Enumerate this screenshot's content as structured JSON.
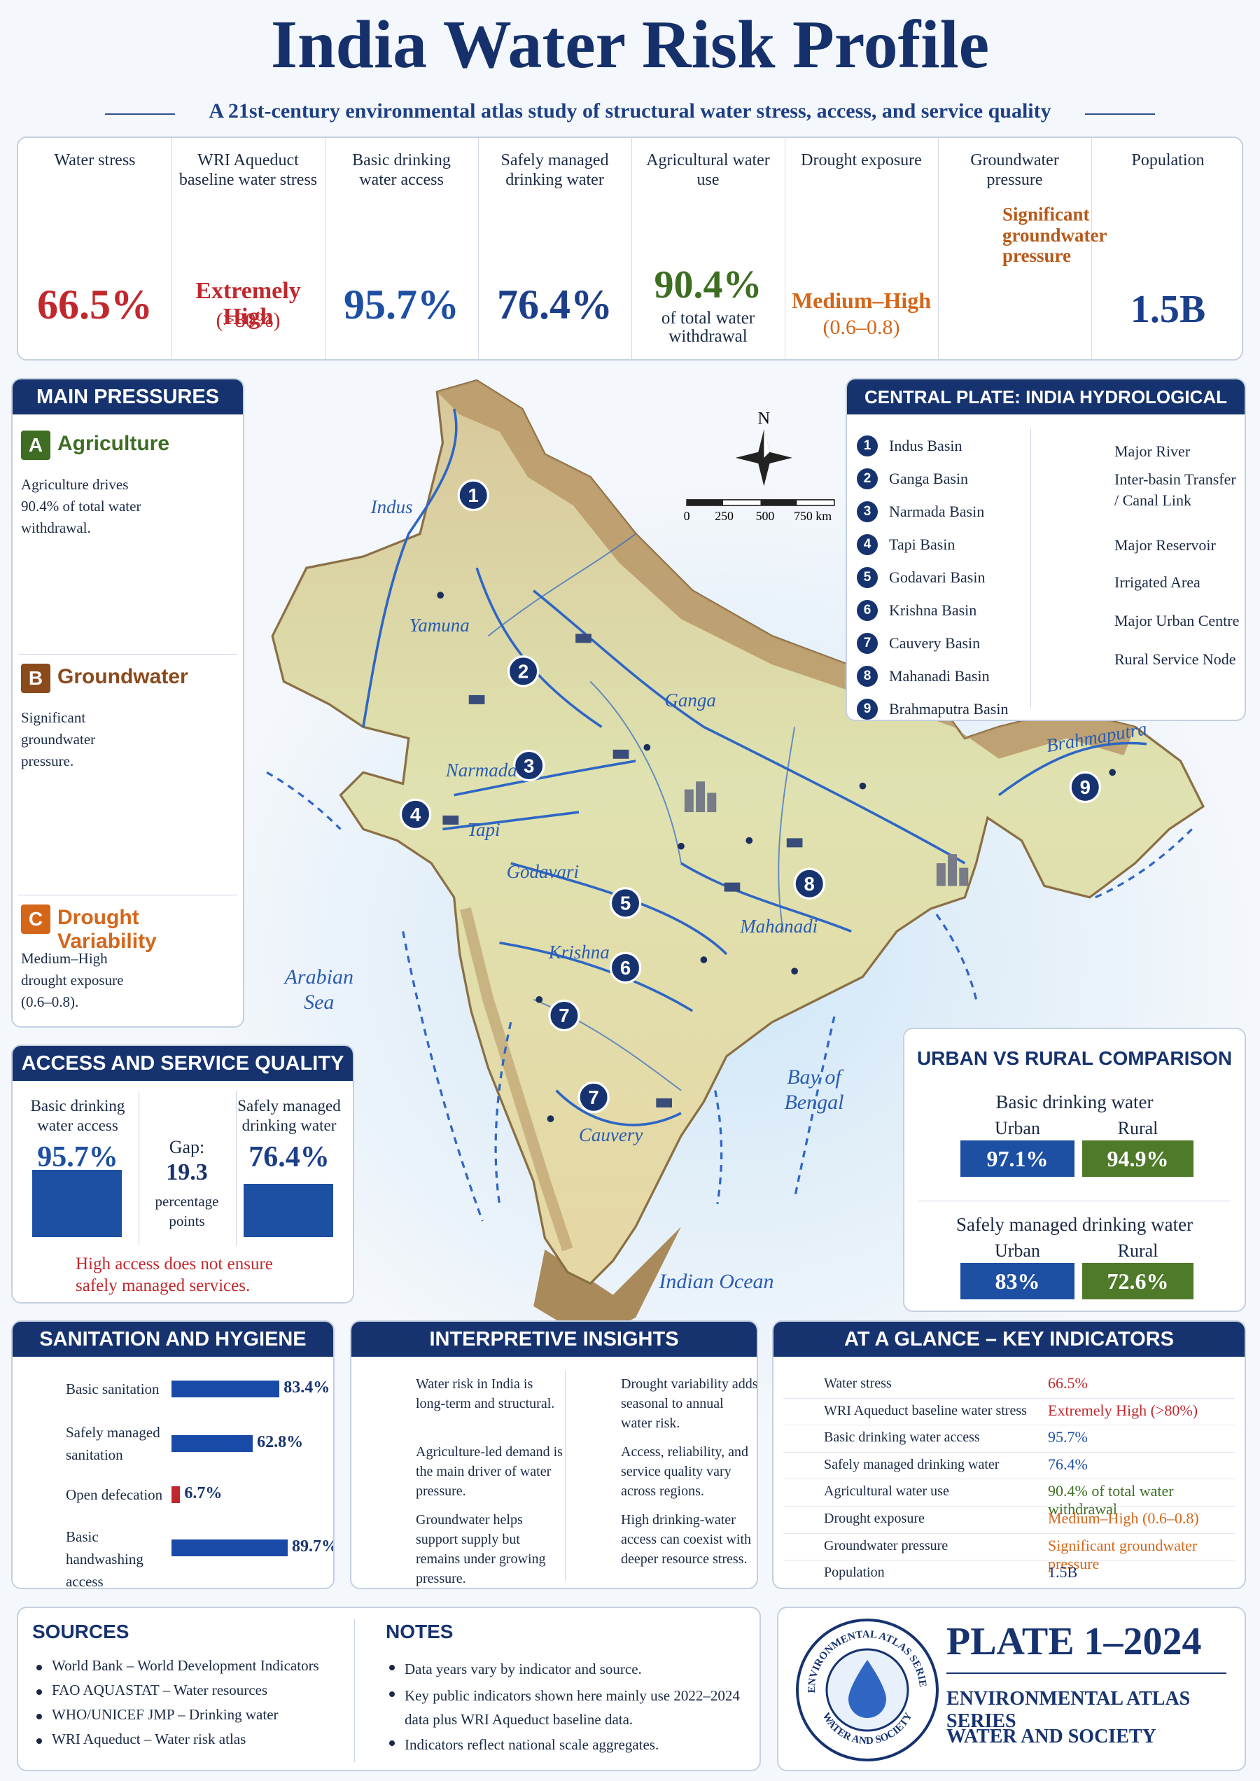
{
  "header": {
    "title": "India Water Risk Profile",
    "subtitle": "A 21st-century environmental atlas study of structural water stress, access, and service quality"
  },
  "indicators": [
    {
      "label": "Water stress",
      "value": "66.5%"
    },
    {
      "label": "WRI Aqueduct baseline water stress",
      "value": "Extremely High",
      "note": "(>80%)"
    },
    {
      "label": "Basic drinking water access",
      "value": "95.7%"
    },
    {
      "label": "Safely managed drinking water",
      "value": "76.4%"
    },
    {
      "label": "Agricultural water use",
      "value": "90.4%",
      "note": "of total water withdrawal"
    },
    {
      "label": "Drought exposure",
      "value": "Medium–High",
      "note": "(0.6–0.8)"
    },
    {
      "label": "Groundwater pressure",
      "value": "Significant groundwater pressure"
    },
    {
      "label": "Population",
      "value": "1.5B"
    }
  ],
  "main_pressures": {
    "title": "MAIN PRESSURES",
    "items": [
      {
        "letter": "A",
        "title": "Agriculture",
        "text": "Agriculture drives 90.4% of total water withdrawal."
      },
      {
        "letter": "B",
        "title": "Groundwater",
        "text": "Significant groundwater pressure."
      },
      {
        "letter": "C",
        "title": "Drought Variability",
        "text": "Medium–High drought exposure (0.6–0.8)."
      }
    ]
  },
  "map": {
    "title": "CENTRAL PLATE: INDIA HYDROLOGICAL ATLAS",
    "compass": "N",
    "scale_labels": [
      "0",
      "250",
      "500",
      "750 km"
    ],
    "basins": [
      {
        "number": "1",
        "name": "Indus Basin"
      },
      {
        "number": "2",
        "name": "Ganga Basin"
      },
      {
        "number": "3",
        "name": "Narmada Basin"
      },
      {
        "number": "4",
        "name": "Tapi Basin"
      },
      {
        "number": "5",
        "name": "Godavari Basin"
      },
      {
        "number": "6",
        "name": "Krishna Basin"
      },
      {
        "number": "7",
        "name": "Cauvery Basin"
      },
      {
        "number": "8",
        "name": "Mahanadi Basin"
      },
      {
        "number": "9",
        "name": "Brahmaputra Basin"
      }
    ],
    "symbols": [
      "Major River",
      "Inter-basin Transfer / Canal Link",
      "Major Reservoir",
      "Irrigated Area",
      "Major Urban Centre",
      "Rural Service Node"
    ],
    "rivers": [
      "Indus",
      "Yamuna",
      "Ganga",
      "Narmada",
      "Tapi",
      "Godavari",
      "Krishna",
      "Mahanadi",
      "Cauvery",
      "Brahmaputra"
    ],
    "seas": [
      "Arabian Sea",
      "Bay of Bengal",
      "Indian Ocean"
    ],
    "markers": [
      "1",
      "2",
      "3",
      "4",
      "5",
      "6",
      "7",
      "7",
      "8",
      "9"
    ]
  },
  "access": {
    "title": "ACCESS AND SERVICE QUALITY",
    "categories": [
      "Basic drinking water access",
      "Safely managed drinking water"
    ],
    "values": [
      95.7,
      76.4
    ],
    "value_labels": [
      "95.7%",
      "76.4%"
    ],
    "ylim": [
      0,
      100
    ],
    "gap_label": "Gap:",
    "gap_value": "19.3",
    "gap_unit": "percentage points",
    "warning": "High access does not ensure safely managed services."
  },
  "urban_rural": {
    "title": "URBAN VS RURAL COMPARISON",
    "groups": [
      {
        "title": "Basic drinking water",
        "urban_label": "Urban",
        "urban": "97.1%",
        "rural_label": "Rural",
        "rural": "94.9%"
      },
      {
        "title": "Safely managed drinking water",
        "urban_label": "Urban",
        "urban": "83%",
        "rural_label": "Rural",
        "rural": "72.6%"
      }
    ]
  },
  "sanitation": {
    "title": "SANITATION AND HYGIENE",
    "categories": [
      "Basic sanitation",
      "Safely managed sanitation",
      "Open defecation",
      "Basic handwashing access"
    ],
    "values": [
      83.4,
      62.8,
      6.7,
      89.7
    ],
    "value_labels": [
      "83.4%",
      "62.8%",
      "6.7%",
      "89.7%"
    ],
    "xlim": [
      0,
      100
    ]
  },
  "insights": {
    "title": "INTERPRETIVE INSIGHTS",
    "items": [
      "Water risk in India is long-term and structural.",
      "Agriculture-led demand is the main driver of water pressure.",
      "Groundwater helps support supply but remains under growing pressure.",
      "Drought variability adds seasonal to annual water risk.",
      "Access, reliability, and service quality vary across regions.",
      "High drinking-water access can coexist with deeper resource stress."
    ]
  },
  "glance": {
    "title": "AT A GLANCE – KEY INDICATORS",
    "rows": [
      {
        "label": "Water stress",
        "value": "66.5%"
      },
      {
        "label": "WRI Aqueduct baseline water stress",
        "value": "Extremely High (>80%)"
      },
      {
        "label": "Basic drinking water access",
        "value": "95.7%"
      },
      {
        "label": "Safely managed drinking water",
        "value": "76.4%"
      },
      {
        "label": "Agricultural water use",
        "value": "90.4% of total water withdrawal"
      },
      {
        "label": "Drought exposure",
        "value": "Medium–High (0.6–0.8)"
      },
      {
        "label": "Groundwater pressure",
        "value": "Significant groundwater pressure"
      },
      {
        "label": "Population",
        "value": "1.5B"
      }
    ]
  },
  "sources": {
    "title": "SOURCES",
    "items": [
      "World Bank – World Development Indicators",
      "FAO AQUASTAT – Water resources",
      "WHO/UNICEF JMP – Drinking water",
      "WRI Aqueduct – Water risk atlas"
    ]
  },
  "notes": {
    "title": "NOTES",
    "items": [
      "Data years vary by indicator and source.",
      "Key public indicators shown here mainly use 2022–2024 data plus WRI Aqueduct baseline data.",
      "Indicators reflect national scale aggregates."
    ]
  },
  "plate": {
    "title": "PLATE 1–2024",
    "series": "ENVIRONMENTAL ATLAS SERIES",
    "subtitle": "WATER AND SOCIETY",
    "seal_top": "ENVIRONMENTAL ATLAS SERIES",
    "seal_bottom": "WATER AND SOCIETY"
  }
}
